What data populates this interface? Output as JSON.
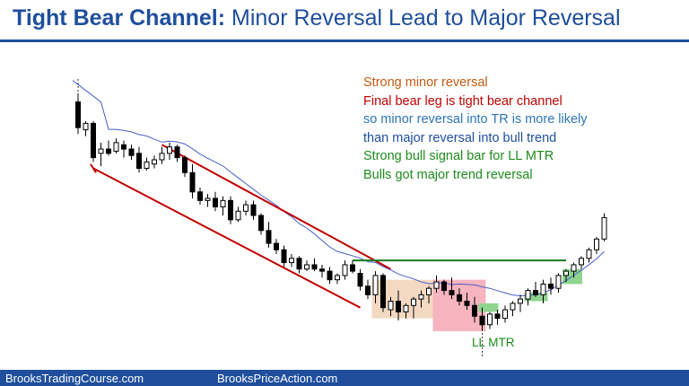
{
  "title": {
    "bold": "Tight Bear Channel:",
    "rest": " Minor Reversal Lead to Major Reversal"
  },
  "notes": [
    {
      "text": "Strong minor reversal",
      "color": "#c55a11"
    },
    {
      "text": "Final bear leg is tight bear channel",
      "color": "#c00000"
    },
    {
      "text": "so minor reversal into TR is more likely",
      "color": "#2e75b6"
    },
    {
      "text": "than major reversal into bull trend",
      "color": "#1f4e9c"
    },
    {
      "text": "Strong bull signal bar for LL MTR",
      "color": "#1e8c1e"
    },
    {
      "text": "Bulls got major trend reversal",
      "color": "#1e8c1e"
    }
  ],
  "annotation_label": "LL MTR",
  "footer": {
    "left": "BrooksTradingCourse.com",
    "right": "BrooksPriceAction.com"
  },
  "colors": {
    "title": "#1f4e9c",
    "channel": "#c00000",
    "moving_average": "#4a5ec9",
    "breakout_line": "#1e7a1e",
    "range_box": "#f4d9c2",
    "pullback_box": "#f6b4bf",
    "bull_highlight": "#8fd48f"
  },
  "chart_data": {
    "type": "candlestick",
    "ylim": [
      0,
      100
    ],
    "bars": [
      {
        "o": 86,
        "h": 90,
        "l": 71,
        "c": 74
      },
      {
        "o": 73,
        "h": 77,
        "l": 70,
        "c": 76
      },
      {
        "o": 76,
        "h": 77,
        "l": 58,
        "c": 60
      },
      {
        "o": 62,
        "h": 67,
        "l": 56,
        "c": 64
      },
      {
        "o": 64,
        "h": 68,
        "l": 61,
        "c": 62
      },
      {
        "o": 63,
        "h": 69,
        "l": 62,
        "c": 67
      },
      {
        "o": 66,
        "h": 68,
        "l": 60,
        "c": 64
      },
      {
        "o": 64,
        "h": 66,
        "l": 59,
        "c": 61
      },
      {
        "o": 62,
        "h": 65,
        "l": 53,
        "c": 55
      },
      {
        "o": 55,
        "h": 60,
        "l": 54,
        "c": 58
      },
      {
        "o": 57,
        "h": 61,
        "l": 55,
        "c": 59
      },
      {
        "o": 59,
        "h": 65,
        "l": 57,
        "c": 62
      },
      {
        "o": 62,
        "h": 67,
        "l": 59,
        "c": 65
      },
      {
        "o": 65,
        "h": 66,
        "l": 58,
        "c": 60
      },
      {
        "o": 60,
        "h": 61,
        "l": 51,
        "c": 53
      },
      {
        "o": 53,
        "h": 57,
        "l": 41,
        "c": 44
      },
      {
        "o": 44,
        "h": 46,
        "l": 38,
        "c": 40
      },
      {
        "o": 40,
        "h": 43,
        "l": 37,
        "c": 41
      },
      {
        "o": 41,
        "h": 44,
        "l": 35,
        "c": 37
      },
      {
        "o": 37,
        "h": 42,
        "l": 33,
        "c": 40
      },
      {
        "o": 40,
        "h": 42,
        "l": 29,
        "c": 31
      },
      {
        "o": 31,
        "h": 37,
        "l": 30,
        "c": 35
      },
      {
        "o": 35,
        "h": 40,
        "l": 33,
        "c": 38
      },
      {
        "o": 38,
        "h": 40,
        "l": 31,
        "c": 33
      },
      {
        "o": 33,
        "h": 34,
        "l": 24,
        "c": 26
      },
      {
        "o": 26,
        "h": 30,
        "l": 18,
        "c": 20
      },
      {
        "o": 20,
        "h": 22,
        "l": 15,
        "c": 17
      },
      {
        "o": 17,
        "h": 19,
        "l": 9,
        "c": 11
      },
      {
        "o": 11,
        "h": 15,
        "l": 9,
        "c": 13
      },
      {
        "o": 13,
        "h": 14,
        "l": 6,
        "c": 8
      },
      {
        "o": 8,
        "h": 12,
        "l": 7,
        "c": 10
      },
      {
        "o": 10,
        "h": 13,
        "l": 7,
        "c": 8
      },
      {
        "o": 8,
        "h": 10,
        "l": 4,
        "c": 7
      },
      {
        "o": 7,
        "h": 9,
        "l": 1,
        "c": 3
      },
      {
        "o": 3,
        "h": 6,
        "l": 1,
        "c": 5
      },
      {
        "o": 5,
        "h": 12,
        "l": 3,
        "c": 10
      },
      {
        "o": 10,
        "h": 12,
        "l": 6,
        "c": 7
      },
      {
        "o": 6,
        "h": 8,
        "l": -2,
        "c": 0
      },
      {
        "o": 0,
        "h": 3,
        "l": -6,
        "c": -4
      },
      {
        "o": -4,
        "h": 7,
        "l": -8,
        "c": 5
      },
      {
        "o": 5,
        "h": 6,
        "l": -12,
        "c": -10
      },
      {
        "o": -11,
        "h": -5,
        "l": -14,
        "c": -7
      },
      {
        "o": -7,
        "h": -2,
        "l": -16,
        "c": -12
      },
      {
        "o": -12,
        "h": -8,
        "l": -15,
        "c": -9
      },
      {
        "o": -9,
        "h": -5,
        "l": -15,
        "c": -6
      },
      {
        "o": -6,
        "h": -2,
        "l": -10,
        "c": -4
      },
      {
        "o": -4,
        "h": 0,
        "l": -8,
        "c": -1
      },
      {
        "o": -1,
        "h": 5,
        "l": -3,
        "c": 2
      },
      {
        "o": 2,
        "h": 3,
        "l": -4,
        "c": -2
      },
      {
        "o": -2,
        "h": 4,
        "l": -6,
        "c": -4
      },
      {
        "o": -4,
        "h": -1,
        "l": -9,
        "c": -7
      },
      {
        "o": -7,
        "h": -3,
        "l": -11,
        "c": -9
      },
      {
        "o": -9,
        "h": -5,
        "l": -17,
        "c": -14
      },
      {
        "o": -14,
        "h": -10,
        "l": -21,
        "c": -18
      },
      {
        "o": -18,
        "h": -12,
        "l": -20,
        "c": -13
      },
      {
        "o": -13,
        "h": -11,
        "l": -18,
        "c": -15
      },
      {
        "o": -15,
        "h": -9,
        "l": -17,
        "c": -11
      },
      {
        "o": -11,
        "h": -7,
        "l": -14,
        "c": -8
      },
      {
        "o": -8,
        "h": -4,
        "l": -12,
        "c": -6
      },
      {
        "o": -6,
        "h": -1,
        "l": -9,
        "c": -2
      },
      {
        "o": -2,
        "h": 2,
        "l": -5,
        "c": -4
      },
      {
        "o": -4,
        "h": 3,
        "l": -8,
        "c": 1
      },
      {
        "o": 1,
        "h": 4,
        "l": -4,
        "c": -1
      },
      {
        "o": -1,
        "h": 6,
        "l": -3,
        "c": 5
      },
      {
        "o": 5,
        "h": 8,
        "l": 2,
        "c": 7
      },
      {
        "o": 7,
        "h": 11,
        "l": 4,
        "c": 10
      },
      {
        "o": 10,
        "h": 14,
        "l": 8,
        "c": 13
      },
      {
        "o": 13,
        "h": 18,
        "l": 11,
        "c": 17
      },
      {
        "o": 17,
        "h": 23,
        "l": 15,
        "c": 22
      },
      {
        "o": 22,
        "h": 34,
        "l": 21,
        "c": 32
      }
    ]
  }
}
